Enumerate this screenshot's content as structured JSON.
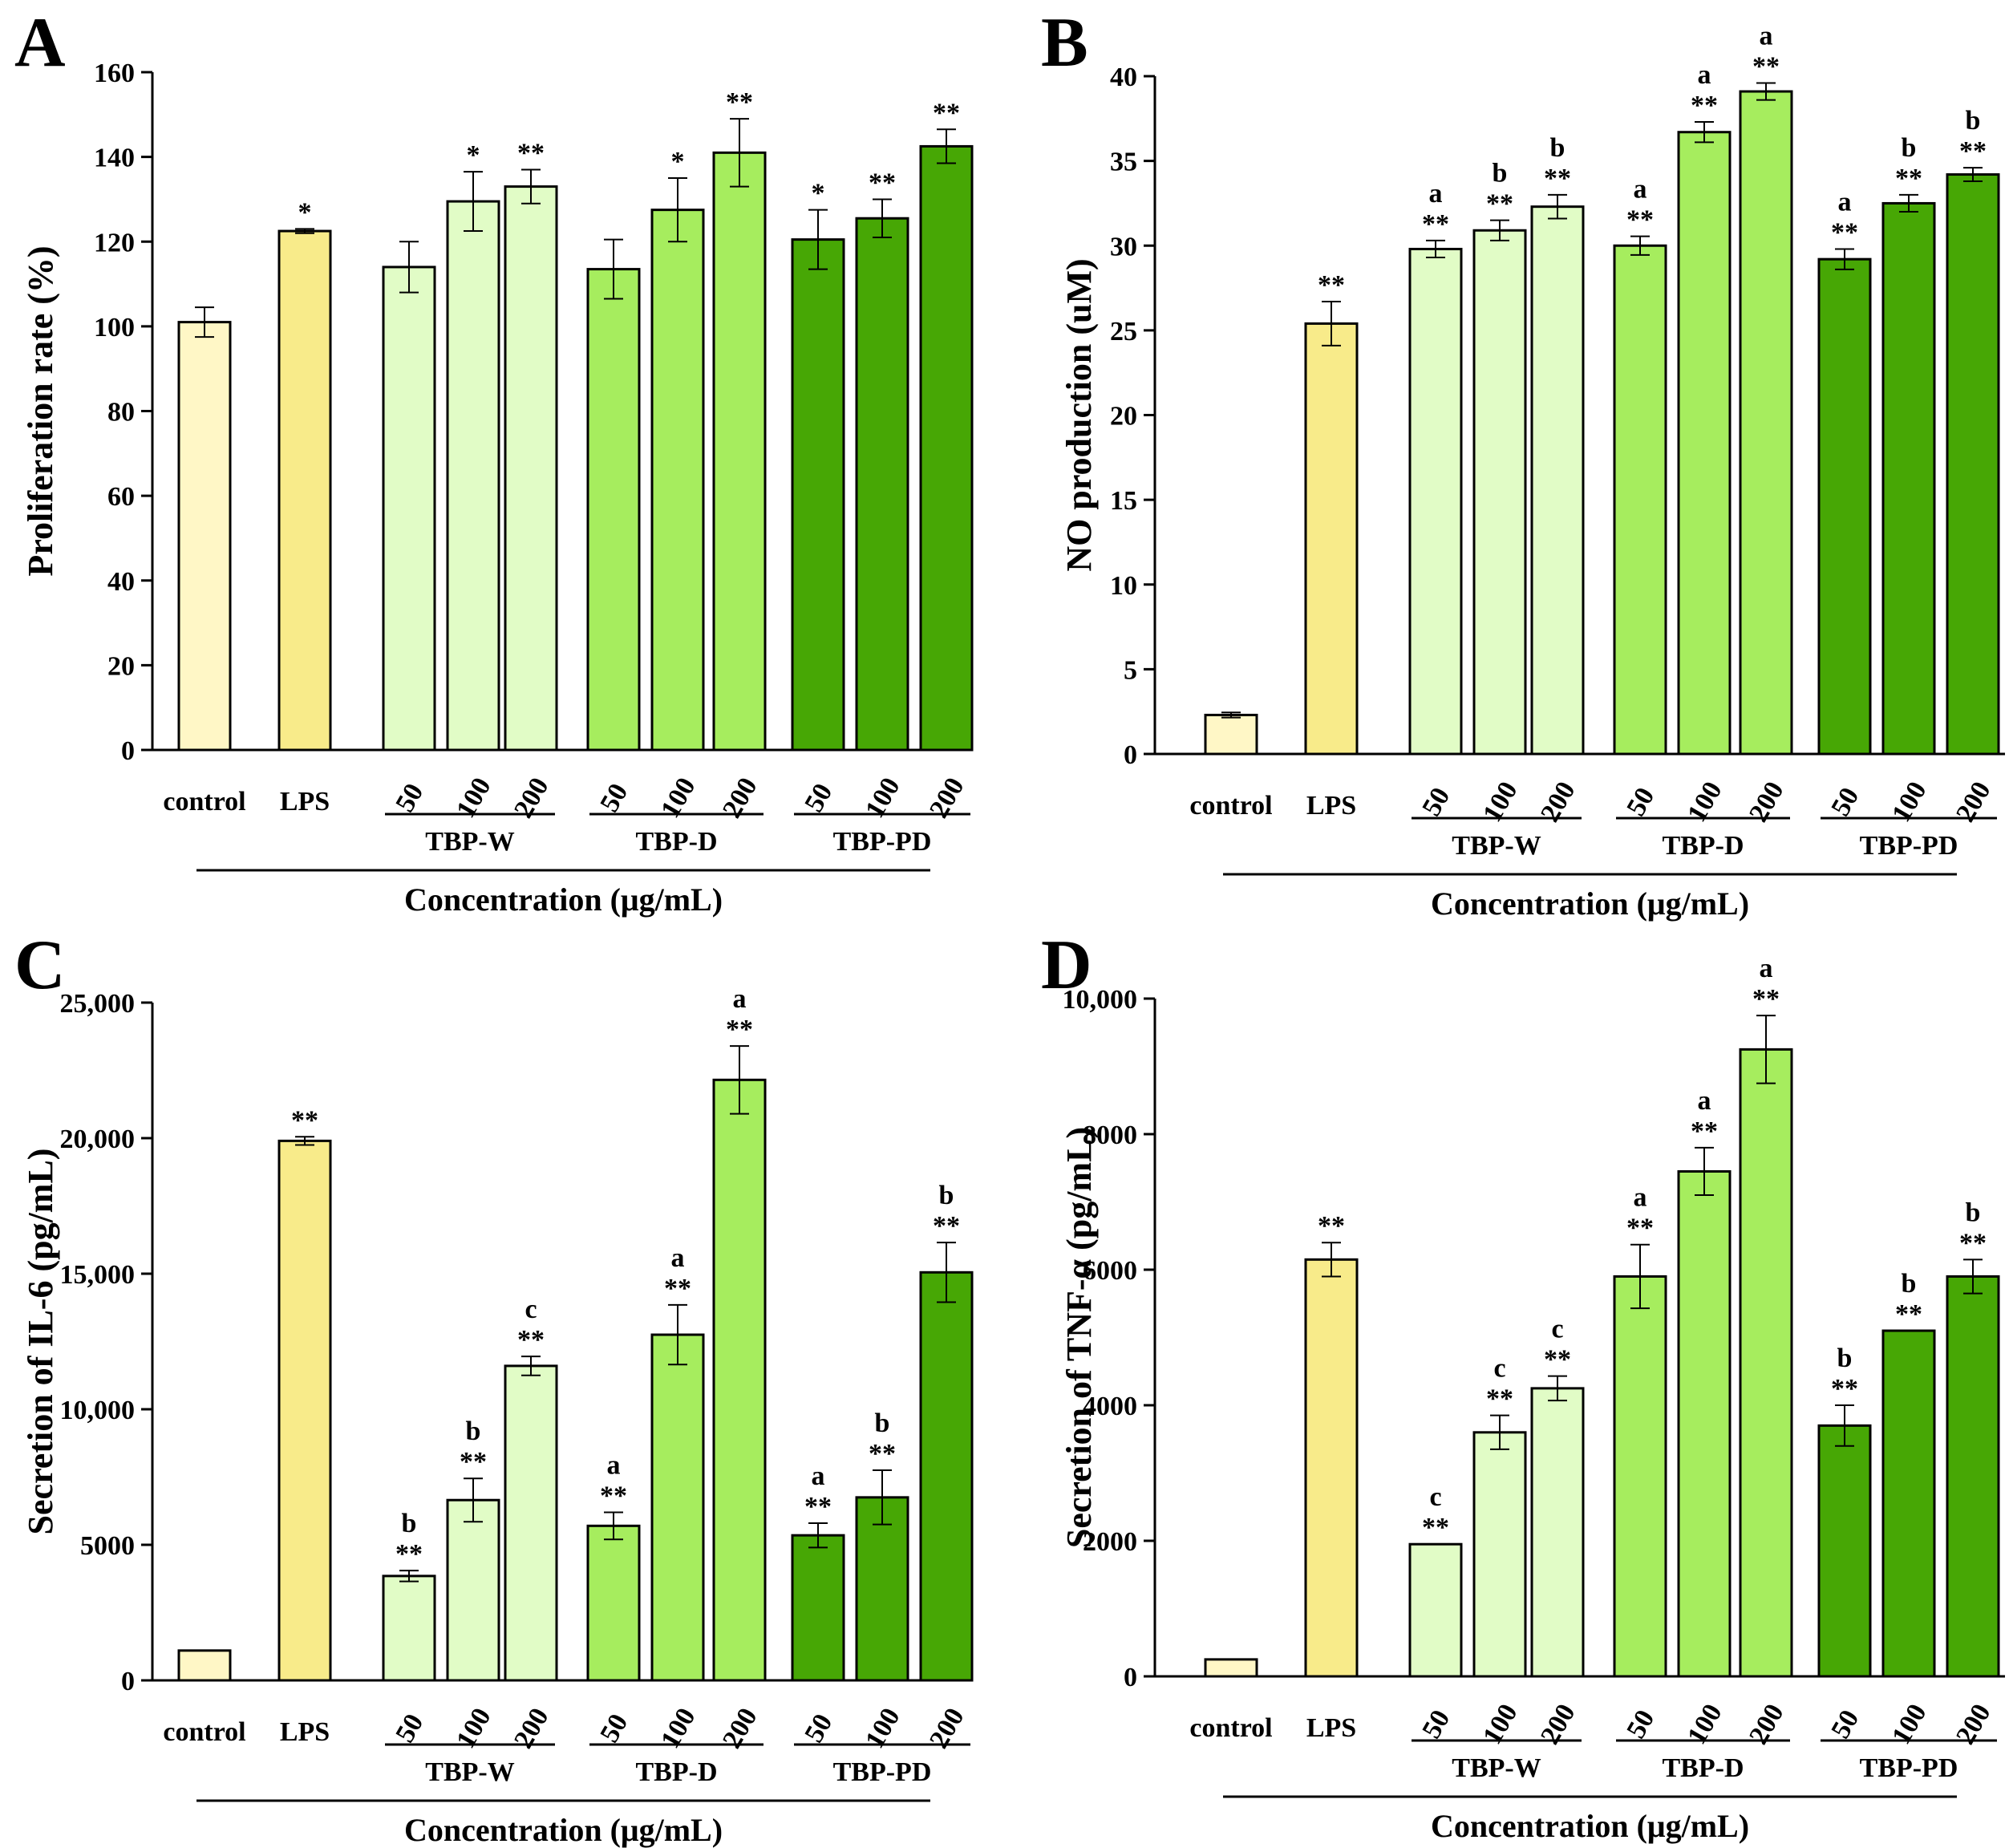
{
  "chart_data": [
    {
      "type": "bar",
      "panel": "A",
      "ylabel": "Proliferation rate (%)",
      "xlabel": "Concentration (μg/mL)",
      "ylim": [
        0,
        160
      ],
      "yticks": [
        0,
        20,
        40,
        60,
        80,
        100,
        120,
        140,
        160
      ],
      "ytick_labels": [
        "0",
        "20",
        "40",
        "60",
        "80",
        "100",
        "120",
        "140",
        "160"
      ],
      "categories": [
        "control",
        "LPS",
        "50",
        "100",
        "200",
        "50",
        "100",
        "200",
        "50",
        "100",
        "200"
      ],
      "groups": [
        {
          "name": "TBP-W",
          "start": 2,
          "end": 4
        },
        {
          "name": "TBP-D",
          "start": 5,
          "end": 7
        },
        {
          "name": "TBP-PD",
          "start": 8,
          "end": 10
        }
      ],
      "values": [
        101,
        122.5,
        114,
        129.5,
        133,
        113.5,
        127.5,
        141,
        120.5,
        125.5,
        142.5
      ],
      "errors": [
        3.5,
        0.5,
        6,
        7,
        4,
        7,
        7.5,
        8,
        7,
        4.5,
        4
      ],
      "significance": [
        "",
        "*",
        "",
        "*",
        "**",
        "",
        "*",
        "**",
        "*",
        "**",
        "**"
      ],
      "letters": [
        "",
        "",
        "",
        "",
        "",
        "",
        "",
        "",
        "",
        "",
        ""
      ]
    },
    {
      "type": "bar",
      "panel": "B",
      "ylabel": "NO production (uM)",
      "xlabel": "Concentration (μg/mL)",
      "ylim": [
        0,
        40
      ],
      "yticks": [
        0,
        5,
        10,
        15,
        20,
        25,
        30,
        35,
        40
      ],
      "ytick_labels": [
        "0",
        "5",
        "10",
        "15",
        "20",
        "25",
        "30",
        "35",
        "40"
      ],
      "categories": [
        "control",
        "LPS",
        "50",
        "100",
        "200",
        "50",
        "100",
        "200",
        "50",
        "100",
        "200"
      ],
      "groups": [
        {
          "name": "TBP-W",
          "start": 2,
          "end": 4
        },
        {
          "name": "TBP-D",
          "start": 5,
          "end": 7
        },
        {
          "name": "TBP-PD",
          "start": 8,
          "end": 10
        }
      ],
      "values": [
        2.3,
        25.4,
        29.8,
        30.9,
        32.3,
        30,
        36.7,
        39.1,
        29.2,
        32.5,
        34.2
      ],
      "errors": [
        0.15,
        1.3,
        0.5,
        0.6,
        0.7,
        0.55,
        0.6,
        0.5,
        0.6,
        0.5,
        0.4
      ],
      "significance": [
        "",
        "**",
        "**",
        "**",
        "**",
        "**",
        "**",
        "**",
        "**",
        "**",
        "**"
      ],
      "letters": [
        "",
        "",
        "a",
        "b",
        "b",
        "a",
        "a",
        "a",
        "a",
        "b",
        "b"
      ]
    },
    {
      "type": "bar",
      "panel": "C",
      "ylabel": "Secretion of IL-6 (pg/mL)",
      "xlabel": "Concentration (μg/mL)",
      "ylim": [
        0,
        25000
      ],
      "yticks": [
        0,
        5000,
        10000,
        15000,
        20000,
        25000
      ],
      "ytick_labels": [
        "0",
        "5000",
        "10,000",
        "15,000",
        "20,000",
        "25,000"
      ],
      "categories": [
        "control",
        "LPS",
        "50",
        "100",
        "200",
        "50",
        "100",
        "200",
        "50",
        "100",
        "200"
      ],
      "groups": [
        {
          "name": "TBP-W",
          "start": 2,
          "end": 4
        },
        {
          "name": "TBP-D",
          "start": 5,
          "end": 7
        },
        {
          "name": "TBP-PD",
          "start": 8,
          "end": 10
        }
      ],
      "values": [
        1100,
        19900,
        3850,
        6650,
        11600,
        5700,
        12750,
        22150,
        5350,
        6750,
        15050
      ],
      "errors": [
        0,
        150,
        200,
        800,
        350,
        500,
        1100,
        1250,
        450,
        1000,
        1100
      ],
      "significance": [
        "",
        "**",
        "**",
        "**",
        "**",
        "**",
        "**",
        "**",
        "**",
        "**",
        "**"
      ],
      "letters": [
        "",
        "",
        "b",
        "b",
        "c",
        "a",
        "a",
        "a",
        "a",
        "b",
        "b"
      ]
    },
    {
      "type": "bar",
      "panel": "D",
      "ylabel": "Secretion of TNF-α (pg/mL)",
      "xlabel": "Concentration (μg/mL)",
      "ylim": [
        0,
        10000
      ],
      "yticks": [
        0,
        2000,
        4000,
        6000,
        8000,
        10000
      ],
      "ytick_labels": [
        "0",
        "2000",
        "4000",
        "6000",
        "8000",
        "10,000"
      ],
      "categories": [
        "control",
        "LPS",
        "50",
        "100",
        "200",
        "50",
        "100",
        "200",
        "50",
        "100",
        "200"
      ],
      "groups": [
        {
          "name": "TBP-W",
          "start": 2,
          "end": 4
        },
        {
          "name": "TBP-D",
          "start": 5,
          "end": 7
        },
        {
          "name": "TBP-PD",
          "start": 8,
          "end": 10
        }
      ],
      "values": [
        250,
        6150,
        1950,
        3600,
        4250,
        5900,
        7450,
        9250,
        3700,
        5100,
        5900
      ],
      "errors": [
        0,
        250,
        0,
        250,
        180,
        470,
        350,
        500,
        300,
        0,
        250
      ],
      "significance": [
        "",
        "**",
        "**",
        "**",
        "**",
        "**",
        "**",
        "**",
        "**",
        "**",
        "**"
      ],
      "letters": [
        "",
        "",
        "c",
        "c",
        "c",
        "a",
        "a",
        "a",
        "b",
        "b",
        "b"
      ]
    }
  ],
  "colors": [
    "#fff7c6",
    "#f8eb8a",
    "#e1fcc6",
    "#e1fcc6",
    "#e1fcc6",
    "#a6ed5e",
    "#a6ed5e",
    "#a6ed5e",
    "#47a705",
    "#47a705",
    "#47a705"
  ]
}
